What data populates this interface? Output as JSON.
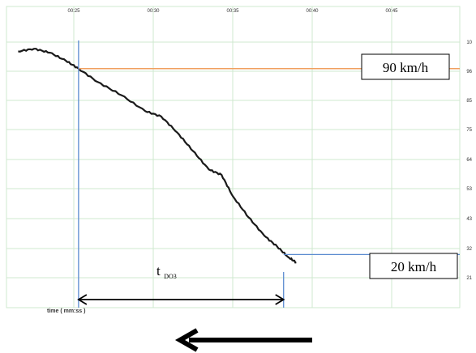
{
  "chart_data": {
    "type": "line",
    "x_ticks": [
      "00:25",
      "00:30",
      "00:35",
      "00:40",
      "00:45"
    ],
    "y_ticks": [
      "10",
      "96",
      "85",
      "75",
      "64",
      "53",
      "43",
      "32",
      "21"
    ],
    "xlabel": "time ( mm:ss )",
    "grid": true,
    "colors": {
      "speed_curve": "#1a1a1a",
      "threshold_90": "#f0a060",
      "marker_lines": "#5b8bd0",
      "grid": "#cfe8cf"
    },
    "series": [
      {
        "x": [
          "00:21.5",
          "00:22.5",
          "00:23.5",
          "00:24.5",
          "00:25.3",
          "00:26.5",
          "00:28",
          "00:29.5",
          "00:30.5",
          "00:31.5",
          "00:32.5",
          "00:33.5",
          "00:34.3",
          "00:35",
          "00:36",
          "00:37",
          "00:37.8",
          "00:38.5",
          "00:39"
        ],
        "y": [
          96.5,
          97.5,
          96,
          93,
          90,
          85,
          80,
          74,
          72,
          66,
          59,
          52,
          50,
          42,
          34,
          27,
          23,
          19,
          17
        ]
      }
    ],
    "annotations": {
      "upper_label": "90 km/h",
      "upper_value": 90,
      "upper_time": "00:25.3",
      "lower_label": "20 km/h",
      "lower_value": 20,
      "lower_time": "00:38.2",
      "interval_main": "t",
      "interval_sub": "DO3"
    }
  }
}
